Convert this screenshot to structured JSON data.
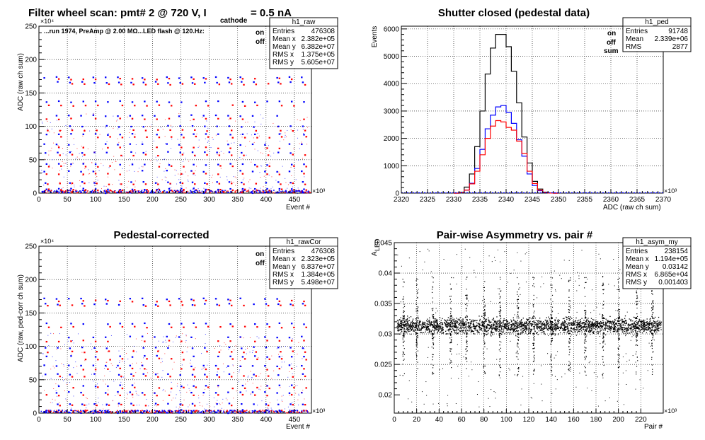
{
  "chart_data": [
    {
      "id": "raw",
      "type": "scatter",
      "title": "Filter wheel scan: pmt#   2 @   720 V, I",
      "title_sub": "cathode",
      "title_tail": "= 0.5 nA",
      "annotation": "...run 1974, PreAmp @ 2.00 MΩ...LED flash @  120.Hz:",
      "xlabel": "Event #",
      "ylabel": "ADC (raw ch sum)",
      "x_multiplier": "×10³",
      "y_multiplier": "×10⁴",
      "xlim": [
        0,
        480
      ],
      "ylim": [
        0,
        250
      ],
      "xticks": [
        "0",
        "50",
        "100",
        "150",
        "200",
        "250",
        "300",
        "350",
        "400",
        "450"
      ],
      "yticks": [
        "0",
        "50",
        "100",
        "150",
        "200",
        "250"
      ],
      "grid": true,
      "legend": {
        "on": "on",
        "off": "off"
      },
      "series": [
        {
          "name": "on",
          "color": "#0000ff",
          "levels": [
            173,
            166,
            137,
            116,
            100,
            88,
            73,
            61,
            43,
            33,
            16,
            6,
            1
          ]
        },
        {
          "name": "off",
          "color": "#ff0000",
          "levels": [
            171,
            163,
            131,
            111,
            94,
            84,
            68,
            57,
            40,
            29,
            14,
            5
          ]
        }
      ],
      "stats": {
        "name": "h1_raw",
        "rows": [
          [
            "Entries",
            "476308"
          ],
          [
            "Mean x",
            "2.382e+05"
          ],
          [
            "Mean y",
            "6.382e+07"
          ],
          [
            "RMS x",
            "1.375e+05"
          ],
          [
            "RMS y",
            "5.605e+07"
          ]
        ]
      }
    },
    {
      "id": "ped",
      "type": "histogram",
      "title": "Shutter closed (pedestal data)",
      "xlabel": "ADC (raw ch sum)",
      "ylabel": "Events",
      "x_multiplier": "×10³",
      "xlim": [
        2320,
        2370
      ],
      "ylim": [
        0,
        6100
      ],
      "xticks": [
        "2320",
        "2325",
        "2330",
        "2335",
        "2340",
        "2345",
        "2350",
        "2355",
        "2360",
        "2365",
        "2370"
      ],
      "yticks": [
        "0",
        "1000",
        "2000",
        "3000",
        "4000",
        "5000",
        "6000"
      ],
      "grid": true,
      "bin_width": 1,
      "bin_start": 2330,
      "series": [
        {
          "name": "sum",
          "color": "#000000",
          "values": [
            0,
            30,
            220,
            700,
            1700,
            3000,
            4350,
            5300,
            5800,
            5800,
            5350,
            4450,
            3300,
            2050,
            1100,
            430,
            150,
            35,
            5,
            0
          ]
        },
        {
          "name": "on",
          "color": "#0000ff",
          "values": [
            0,
            15,
            110,
            360,
            900,
            1600,
            2350,
            2850,
            3150,
            3200,
            2950,
            2550,
            1950,
            1350,
            700,
            280,
            90,
            20,
            3,
            0
          ]
        },
        {
          "name": "off",
          "color": "#ff0000",
          "values": [
            0,
            15,
            110,
            340,
            800,
            1400,
            2000,
            2450,
            2650,
            2600,
            2400,
            2300,
            1900,
            1450,
            800,
            350,
            110,
            20,
            3,
            0
          ]
        }
      ],
      "stats": {
        "name": "h1_ped",
        "rows": [
          [
            "Entries",
            "91748"
          ],
          [
            "Mean",
            "2.339e+06"
          ],
          [
            "RMS",
            "2877"
          ]
        ]
      }
    },
    {
      "id": "cor",
      "type": "scatter",
      "title": "Pedestal-corrected",
      "xlabel": "Event #",
      "ylabel": "ADC (raw, ped-corr ch sum)",
      "x_multiplier": "×10³",
      "y_multiplier": "×10⁴",
      "xlim": [
        0,
        480
      ],
      "ylim": [
        0,
        250
      ],
      "xticks": [
        "0",
        "50",
        "100",
        "150",
        "200",
        "250",
        "300",
        "350",
        "400",
        "450"
      ],
      "yticks": [
        "0",
        "50",
        "100",
        "150",
        "200",
        "250"
      ],
      "grid": true,
      "legend": {
        "on": "on",
        "off": "off"
      },
      "series": [
        {
          "name": "on",
          "color": "#0000ff",
          "levels": [
            171,
            163,
            134,
            114,
            98,
            85,
            71,
            58,
            41,
            31,
            14,
            4,
            1
          ]
        },
        {
          "name": "off",
          "color": "#ff0000",
          "levels": [
            168,
            161,
            129,
            108,
            92,
            81,
            66,
            55,
            38,
            27,
            12,
            3
          ]
        }
      ],
      "stats": {
        "name": "h1_rawCor",
        "rows": [
          [
            "Entries",
            "476308"
          ],
          [
            "Mean x",
            "2.323e+05"
          ],
          [
            "Mean y",
            "6.837e+07"
          ],
          [
            "RMS x",
            "1.384e+05"
          ],
          [
            "RMS y",
            "5.498e+07"
          ]
        ]
      }
    },
    {
      "id": "asym",
      "type": "scatter",
      "title": "Pair-wise Asymmetry vs. pair #",
      "xlabel": "Pair #",
      "ylabel": "A",
      "ylabel_sub": "LED",
      "x_multiplier": "×10³",
      "xlim": [
        0,
        240
      ],
      "ylim": [
        0.017,
        0.045
      ],
      "xticks": [
        "0",
        "20",
        "40",
        "60",
        "80",
        "100",
        "120",
        "140",
        "160",
        "180",
        "200",
        "220"
      ],
      "yticks": [
        "0.02",
        "0.025",
        "0.03",
        "0.035",
        "0.04",
        "0.045"
      ],
      "grid": true,
      "center": 0.0314,
      "band": 0.0012,
      "spike_x": [
        8,
        20,
        34,
        50,
        64,
        80,
        94,
        110,
        124,
        140,
        156,
        170,
        186,
        200,
        216,
        230
      ],
      "stats": {
        "name": "h1_asym_my",
        "rows": [
          [
            "Entries",
            "238154"
          ],
          [
            "Mean x",
            "1.194e+05"
          ],
          [
            "Mean y",
            "0.03142"
          ],
          [
            "RMS x",
            "6.865e+04"
          ],
          [
            "RMS y",
            "0.001403"
          ]
        ]
      }
    }
  ]
}
